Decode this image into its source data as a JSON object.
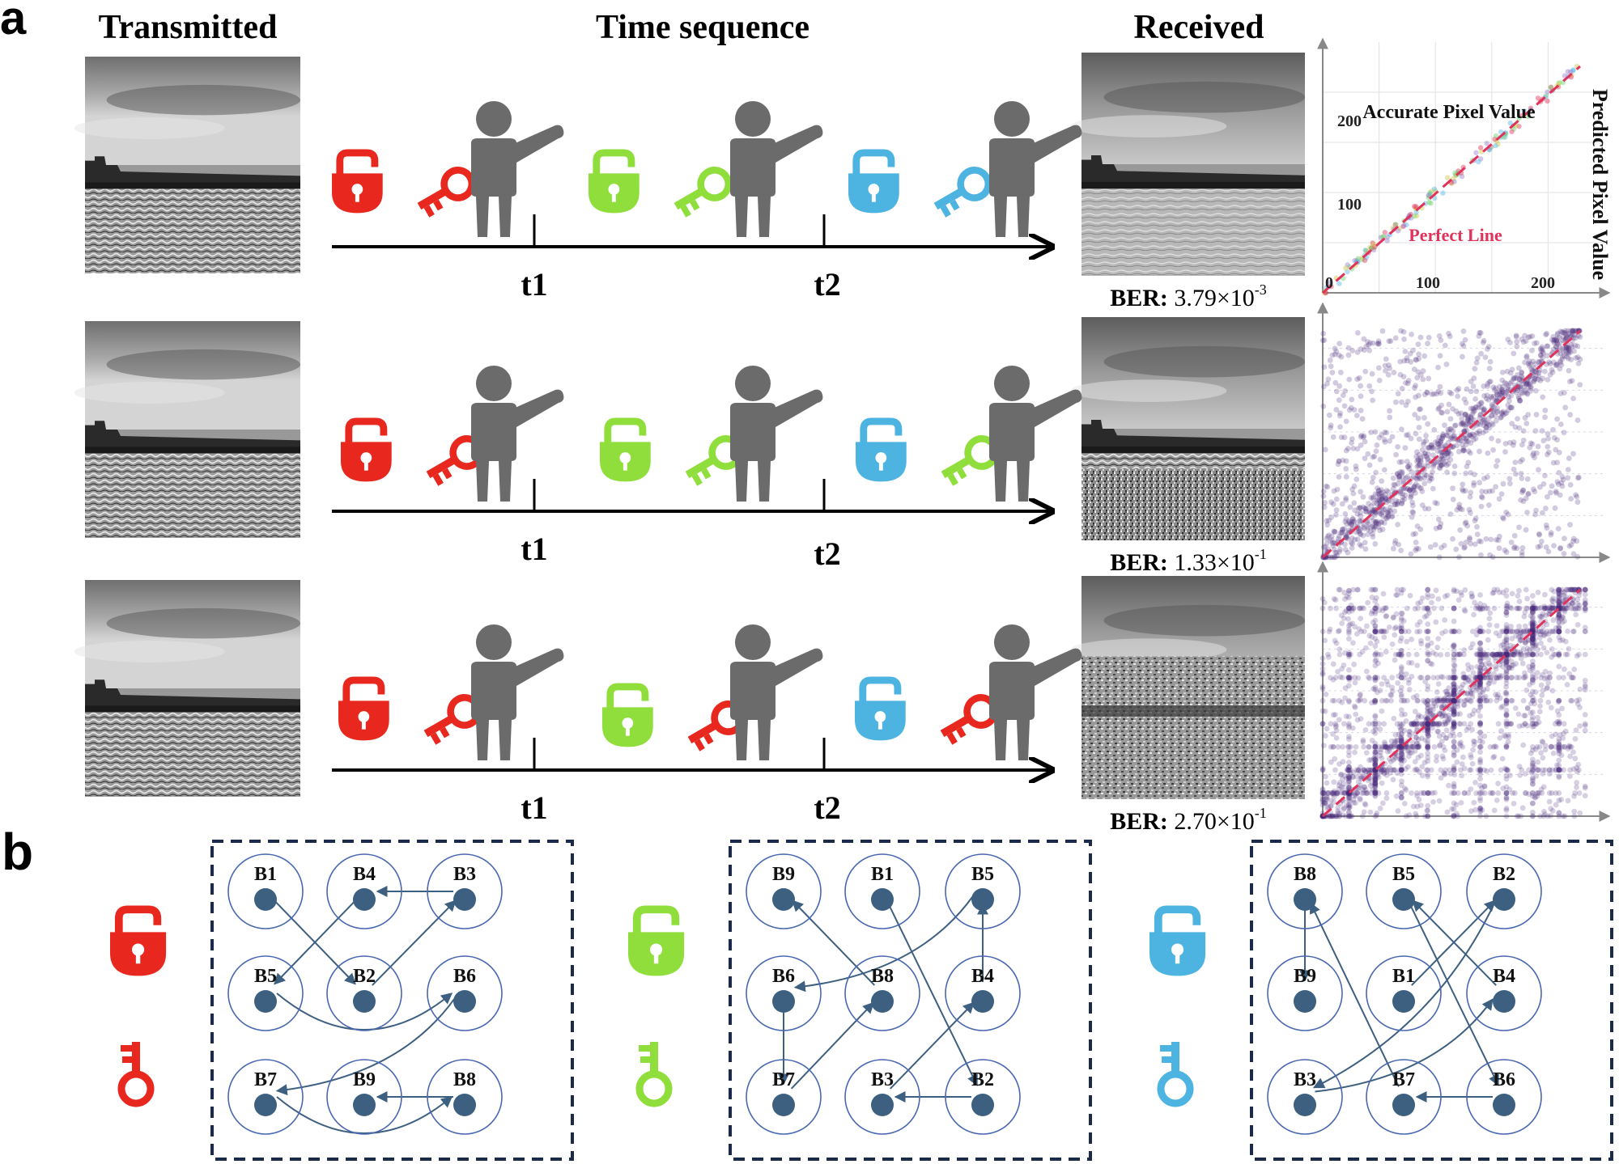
{
  "panel_a": {
    "label": "a",
    "headers": {
      "transmitted": "Transmitted",
      "time_sequence": "Time sequence",
      "received": "Received"
    },
    "rows": [
      {
        "id": "row1",
        "t1": "t1",
        "t2": "t2",
        "steps": [
          {
            "lock": "red",
            "key": "red"
          },
          {
            "lock": "green",
            "key": "green"
          },
          {
            "lock": "blue",
            "key": "blue"
          }
        ],
        "ber": {
          "prefix": "BER:",
          "mantissa": "3.79×10",
          "exponent": "-3"
        },
        "scatter": {
          "mode": "clean",
          "spread": 0
        }
      },
      {
        "id": "row2",
        "t1": "t1",
        "t2": "t2",
        "steps": [
          {
            "lock": "red",
            "key": "red"
          },
          {
            "lock": "green",
            "key": "green"
          },
          {
            "lock": "blue",
            "key": "green"
          }
        ],
        "ber": {
          "prefix": "BER:",
          "mantissa": "1.33×10",
          "exponent": "-1"
        },
        "scatter": {
          "mode": "noisy",
          "spread": 0.55
        }
      },
      {
        "id": "row3",
        "t1": "t1",
        "t2": "t2",
        "steps": [
          {
            "lock": "red",
            "key": "red"
          },
          {
            "lock": "green",
            "key": "red"
          },
          {
            "lock": "blue",
            "key": "red"
          }
        ],
        "ber": {
          "prefix": "BER:",
          "mantissa": "2.70×10",
          "exponent": "-1"
        },
        "scatter": {
          "mode": "noisy",
          "spread": 0.75
        }
      }
    ],
    "chart1": {
      "title": "Accurate Pixel Value",
      "ylabel": "Predicted Pixel Value",
      "legend": "Perfect Line",
      "x_ticks": [
        "0",
        "100",
        "200"
      ],
      "y_ticks": [
        "100",
        "200"
      ],
      "range": [
        0,
        255
      ]
    }
  },
  "panel_b": {
    "label": "b",
    "graphs": [
      {
        "color": "red",
        "grid": [
          [
            "B1",
            "B4",
            "B3"
          ],
          [
            "B5",
            "B2",
            "B6"
          ],
          [
            "B7",
            "B9",
            "B8"
          ]
        ],
        "edges": [
          [
            "B1",
            "B2"
          ],
          [
            "B2",
            "B3"
          ],
          [
            "B3",
            "B4"
          ],
          [
            "B4",
            "B5"
          ],
          [
            "B5",
            "B6"
          ],
          [
            "B6",
            "B7"
          ],
          [
            "B7",
            "B8"
          ],
          [
            "B8",
            "B9"
          ]
        ]
      },
      {
        "color": "green",
        "grid": [
          [
            "B9",
            "B1",
            "B5"
          ],
          [
            "B6",
            "B8",
            "B4"
          ],
          [
            "B7",
            "B3",
            "B2"
          ]
        ],
        "edges": [
          [
            "B1",
            "B2"
          ],
          [
            "B2",
            "B3"
          ],
          [
            "B3",
            "B4"
          ],
          [
            "B4",
            "B5"
          ],
          [
            "B5",
            "B6"
          ],
          [
            "B6",
            "B7"
          ],
          [
            "B7",
            "B8"
          ],
          [
            "B8",
            "B9"
          ]
        ]
      },
      {
        "color": "blue",
        "grid": [
          [
            "B8",
            "B5",
            "B2"
          ],
          [
            "B9",
            "B1",
            "B4"
          ],
          [
            "B3",
            "B7",
            "B6"
          ]
        ],
        "edges": [
          [
            "B1",
            "B2"
          ],
          [
            "B2",
            "B3"
          ],
          [
            "B3",
            "B4"
          ],
          [
            "B4",
            "B5"
          ],
          [
            "B5",
            "B6"
          ],
          [
            "B6",
            "B7"
          ],
          [
            "B7",
            "B8"
          ],
          [
            "B8",
            "B9"
          ]
        ]
      }
    ]
  },
  "colors": {
    "red": "#e8281e",
    "green": "#8fde3c",
    "blue": "#4db3e0",
    "person": "#6b6b6b",
    "node": "#3d5f80",
    "node_ring": "#4a68b0",
    "box": "#1c2a4a",
    "scatter_point": "#4b2a7a",
    "perfect_line": "#e0325a"
  }
}
